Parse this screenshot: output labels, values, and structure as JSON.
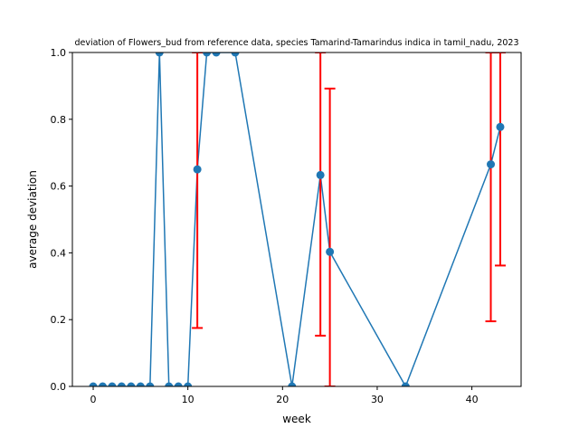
{
  "chart_data": {
    "type": "line",
    "title": "deviation of Flowers_bud from reference data, species Tamarind-Tamarindus indica in tamil_nadu, 2023",
    "xlabel": "week",
    "ylabel": "average deviation",
    "xlim": [
      -2.2,
      45.2
    ],
    "ylim": [
      0.0,
      1.0
    ],
    "xticks": [
      0,
      10,
      20,
      30,
      40
    ],
    "yticks": [
      0.0,
      0.2,
      0.4,
      0.6,
      0.8,
      1.0
    ],
    "xtick_labels": [
      "0",
      "10",
      "20",
      "30",
      "40"
    ],
    "ytick_labels": [
      "0.0",
      "0.2",
      "0.4",
      "0.6",
      "0.8",
      "1.0"
    ],
    "grid": false,
    "series": [
      {
        "color": "#1f77b4",
        "marker": "circle",
        "x": [
          0,
          1,
          2,
          3,
          4,
          5,
          6,
          7,
          8,
          9,
          10,
          11,
          12,
          13,
          15,
          21,
          24,
          25,
          33,
          42,
          43
        ],
        "y": [
          0,
          0,
          0,
          0,
          0,
          0,
          0,
          1.0,
          0,
          0,
          0,
          0.65,
          1.0,
          1.0,
          1.0,
          0,
          0.633,
          0.403,
          0,
          0.665,
          0.777
        ]
      }
    ],
    "error_bars": {
      "color": "#ff0000",
      "items": [
        {
          "x": 11,
          "low": 0.175,
          "high": 1.0
        },
        {
          "x": 24,
          "low": 0.152,
          "high": 1.0
        },
        {
          "x": 25,
          "low": 0.0,
          "high": 0.892
        },
        {
          "x": 42,
          "low": 0.195,
          "high": 1.0
        },
        {
          "x": 43,
          "low": 0.362,
          "high": 1.0
        }
      ]
    }
  }
}
